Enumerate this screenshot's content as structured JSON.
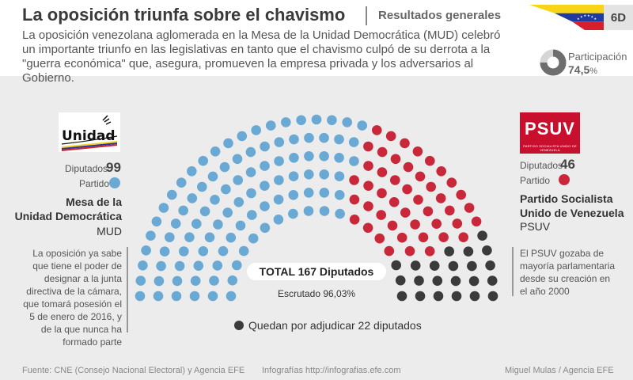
{
  "header": {
    "title": "La oposición triunfa sobre el chavismo",
    "subtitle": "Resultados generales",
    "intro": "La oposición venezolana aglomerada en la Mesa de la Unidad Democrática (MUD) celebró un importante triunfo en las legislativas en tanto que el chavismo culpó de su derrota a la \"guerra económica\" que, asegura, promueven la empresa privada y los adversarios al Gobierno.",
    "code": "6D",
    "flag_colors": {
      "top": "#f7d417",
      "middle": "#1f3aa0",
      "bottom": "#d71e2c",
      "stars": "#ffffff"
    }
  },
  "participation": {
    "label": "Participación",
    "value": "74,5",
    "unit": "%",
    "fraction": 0.745
  },
  "mud": {
    "logo_text": "Unidad",
    "diputados_label": "Diputados",
    "diputados": "99",
    "partido_label": "Partido",
    "color": "#6aa9d4",
    "name_line1": "Mesa de la",
    "name_line2": "Unidad Democrática",
    "abbr": "MUD",
    "description": "La oposición ya sabe que tiene el poder de designar a la junta directiva de la cámara, que tomará posesión el 5 de enero de 2016, y de la que nunca ha formado parte"
  },
  "psuv": {
    "logo_text": "PSUV",
    "logo_subtext": "PARTIDO SOCIALISTA UNIDO DE VENEZUELA",
    "diputados_label": "Diputados",
    "diputados": "46",
    "partido_label": "Partido",
    "color": "#c8283a",
    "name_line1": "Partido Socialista",
    "name_line2": "Unido de Venezuela",
    "abbr": "PSUV",
    "description": "El PSUV gozaba de mayoría parlamentaria desde su creación en el año 2000"
  },
  "center": {
    "total": "TOTAL 167 Diputados",
    "escrutado": "Escrutado 96,03%",
    "pending": "Quedan por adjudicar 22 diputados"
  },
  "chart_data": {
    "type": "parliament",
    "total": 167,
    "series": [
      {
        "name": "MUD",
        "value": 99,
        "color": "#6aa9d4"
      },
      {
        "name": "PSUV",
        "value": 46,
        "color": "#c8283a"
      },
      {
        "name": "Quedan por adjudicar",
        "value": 22,
        "color": "#3b3b3b"
      }
    ]
  },
  "footer": {
    "source": "Fuente: CNE (Consejo Nacional Electoral) y Agencia EFE",
    "web": "Infografías http://infografias.efe.com",
    "author": "Miguel Mulas / Agencia EFE"
  }
}
